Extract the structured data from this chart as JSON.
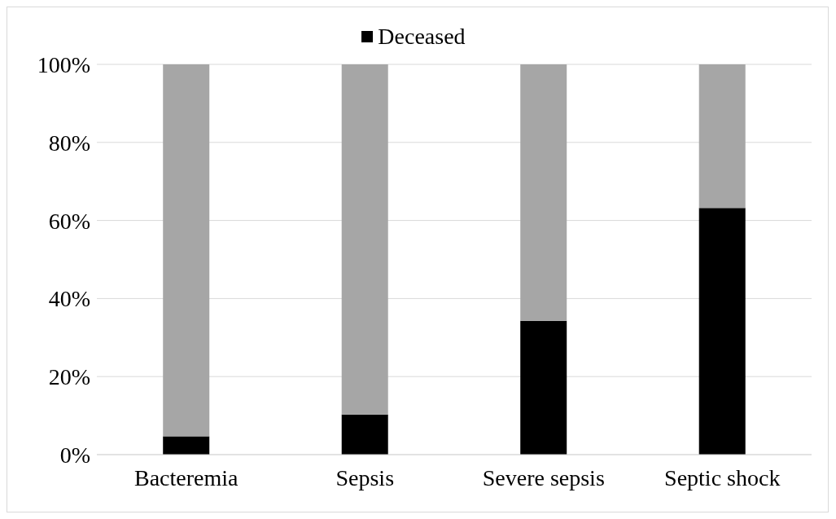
{
  "chart_data": {
    "type": "bar",
    "stacked": true,
    "categories": [
      "Bacteremia",
      "Sepsis",
      "Severe sepsis",
      "Septic shock"
    ],
    "series": [
      {
        "name": "Deceased",
        "color": "#000000",
        "values": [
          4.7,
          10.3,
          34.3,
          63.2
        ]
      },
      {
        "color": "#a6a6a6",
        "values": [
          95.3,
          89.7,
          65.7,
          36.8
        ]
      }
    ],
    "ylim": [
      0,
      100
    ],
    "yticks": [
      {
        "value": 0,
        "label": "0%"
      },
      {
        "value": 20,
        "label": "20%"
      },
      {
        "value": 40,
        "label": "40%"
      },
      {
        "value": 60,
        "label": "60%"
      },
      {
        "value": 80,
        "label": "80%"
      },
      {
        "value": 100,
        "label": "100%"
      }
    ],
    "grid": "y",
    "legend": "top"
  }
}
